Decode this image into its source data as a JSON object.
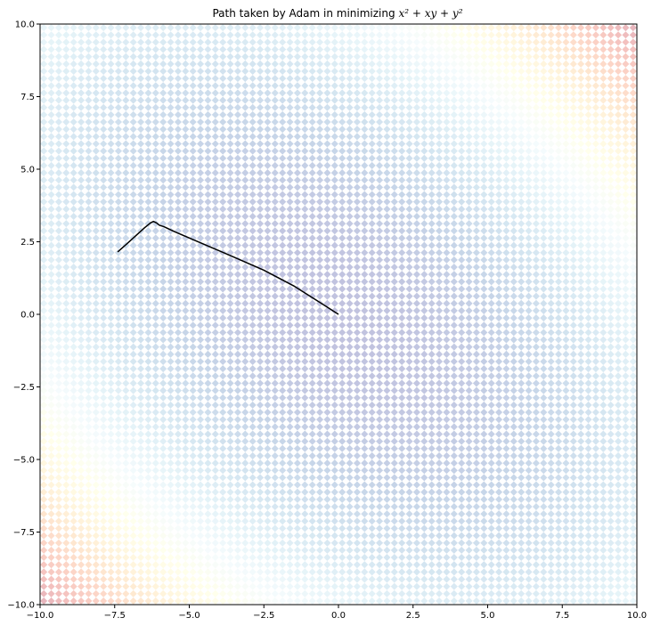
{
  "chart_data": {
    "type": "scatter",
    "title": {
      "prefix": "Path taken by Adam in minimizing ",
      "expression": "x² + xy + y²"
    },
    "xlabel": "",
    "ylabel": "",
    "xlim": [
      -10,
      10
    ],
    "ylim": [
      -10,
      10
    ],
    "xticks": [
      -10,
      -7.5,
      -5,
      -2.5,
      0,
      2.5,
      5,
      7.5,
      10
    ],
    "xtick_labels": [
      "−10.0",
      "−7.5",
      "−5.0",
      "−2.5",
      "0.0",
      "2.5",
      "5.0",
      "7.5",
      "10.0"
    ],
    "yticks": [
      10,
      7.5,
      5,
      2.5,
      0,
      -2.5,
      -5,
      -7.5,
      -10
    ],
    "ytick_labels": [
      "10.0",
      "7.5",
      "5.0",
      "2.5",
      "0.0",
      "−2.5",
      "−5.0",
      "−7.5",
      "−10.0"
    ],
    "background_field": {
      "function": "x^2 + xy + y^2",
      "colormap": "RdYlBu_r",
      "alpha": 0.3,
      "grid_points_per_axis": 80
    },
    "path": {
      "color": "#000000",
      "points": [
        [
          -7.4,
          2.15
        ],
        [
          -7.1,
          2.42
        ],
        [
          -6.8,
          2.7
        ],
        [
          -6.5,
          2.98
        ],
        [
          -6.3,
          3.15
        ],
        [
          -6.2,
          3.2
        ],
        [
          -6.1,
          3.15
        ],
        [
          -6.0,
          3.07
        ],
        [
          -5.85,
          3.02
        ],
        [
          -5.5,
          2.85
        ],
        [
          -4.5,
          2.41
        ],
        [
          -3.5,
          1.97
        ],
        [
          -2.5,
          1.52
        ],
        [
          -1.5,
          0.98
        ],
        [
          -0.5,
          0.33
        ],
        [
          0.0,
          0.0
        ]
      ]
    }
  }
}
